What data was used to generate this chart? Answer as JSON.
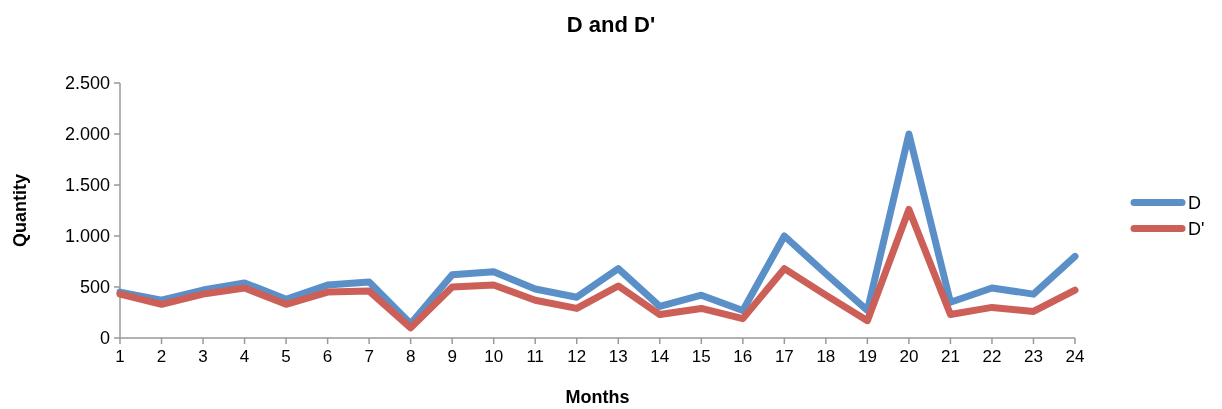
{
  "chart_data": {
    "type": "line",
    "title": "D and D'",
    "xlabel": "Months",
    "ylabel": "Quantity",
    "x": [
      1,
      2,
      3,
      4,
      5,
      6,
      7,
      8,
      9,
      10,
      11,
      12,
      13,
      14,
      15,
      16,
      17,
      18,
      19,
      20,
      21,
      22,
      23,
      24
    ],
    "xlim": [
      1,
      24
    ],
    "xticks": [
      1,
      2,
      3,
      4,
      5,
      6,
      7,
      8,
      9,
      10,
      11,
      12,
      13,
      14,
      15,
      16,
      17,
      18,
      19,
      20,
      21,
      22,
      23,
      24
    ],
    "series": [
      {
        "name": "D",
        "color": "#5b8fc7",
        "values": [
          450,
          370,
          470,
          540,
          380,
          520,
          550,
          140,
          620,
          650,
          480,
          400,
          680,
          310,
          420,
          270,
          1000,
          630,
          270,
          2000,
          350,
          490,
          430,
          800
        ]
      },
      {
        "name": "D'",
        "color": "#cc6058",
        "values": [
          430,
          330,
          430,
          490,
          330,
          450,
          460,
          100,
          500,
          520,
          370,
          290,
          510,
          230,
          290,
          190,
          680,
          420,
          170,
          1260,
          230,
          300,
          260,
          470
        ]
      }
    ],
    "ylim": [
      0,
      2500
    ],
    "yticks": [
      0,
      {
        "value": 500,
        "label": "500"
      },
      {
        "value": 1000,
        "label": "1.000"
      },
      {
        "value": 1500,
        "label": "1.500"
      },
      {
        "value": 2000,
        "label": "2.000"
      },
      {
        "value": 2500,
        "label": "2.500"
      }
    ],
    "grid": false,
    "legend": "right",
    "line_style": "solid"
  }
}
